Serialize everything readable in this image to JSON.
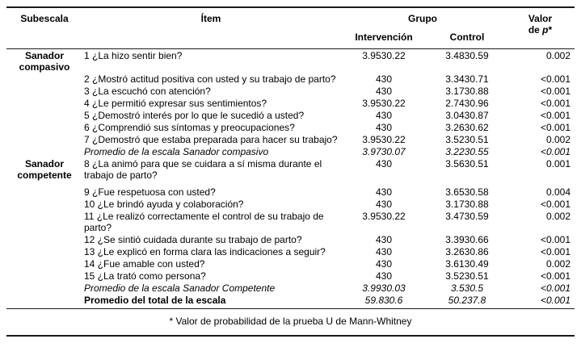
{
  "table": {
    "headers": {
      "subescala": "Subescala",
      "item": "Ítem",
      "grupo": "Grupo",
      "valor_line1": "Valor",
      "valor_line2_prefix": "de ",
      "p_symbol": "p",
      "p_star": "*",
      "intervencion": "Intervención",
      "control": "Control"
    },
    "rows": [
      {
        "subescala": "Sanador compasivo",
        "item": "1 ¿La hizo sentir bien?",
        "intervencion": "3.9530.22",
        "control": "3.4830.59",
        "p": "0.002"
      },
      {
        "item": "2 ¿Mostró actitud positiva con usted y su trabajo de parto?",
        "intervencion": "430",
        "control": "3.3430.71",
        "p": "<0.001"
      },
      {
        "item": "3 ¿La escuchó con atención?",
        "intervencion": "430",
        "control": "3.1730.88",
        "p": "<0.001"
      },
      {
        "item": "4 ¿Le permitió expresar sus sentimientos?",
        "intervencion": "3.9530.22",
        "control": "2.7430.96",
        "p": "<0.001"
      },
      {
        "item": "5 ¿Demostró interés por lo que le sucedió a usted?",
        "intervencion": "430",
        "control": "3.0430.87",
        "p": "<0.001"
      },
      {
        "item": "6 ¿Comprendió sus síntomas y preocupaciones?",
        "intervencion": "430",
        "control": "3.2630.62",
        "p": "<0.001"
      },
      {
        "item": "7 ¿Demostró que estaba preparada para hacer su trabajo?",
        "intervencion": "3.9530.22",
        "control": "3.5230.51",
        "p": "0.002"
      },
      {
        "item": "Promedio de la escala Sanador compasivo",
        "intervencion": "3.9730.07",
        "control": "3.2230.55",
        "p": "<0.001",
        "style": "avg"
      },
      {
        "subescala": "Sanador competente",
        "item": "8 ¿La animó para que se cuidara a sí misma durante el trabajo de parto?",
        "intervencion": "430",
        "control": "3.5630.51",
        "p": "0.001"
      },
      {
        "item": "9 ¿Fue respetuosa con usted?",
        "intervencion": "430",
        "control": "3.6530.58",
        "p": "0.004",
        "gap": true
      },
      {
        "item": "10 ¿Le brindó ayuda y colaboración?",
        "intervencion": "430",
        "control": "3.1730.88",
        "p": "<0.001"
      },
      {
        "item": "11 ¿Le realizó correctamente el control de su trabajo de parto?",
        "intervencion": "3.9530.22",
        "control": "3.4730.59",
        "p": "0.002"
      },
      {
        "item": "12 ¿Se sintió cuidada durante su trabajo de parto?",
        "intervencion": "430",
        "control": "3.3930.66",
        "p": "<0.001"
      },
      {
        "item": "13 ¿Le explicó en forma clara las indicaciones a seguir?",
        "intervencion": "430",
        "control": "3.2630.86",
        "p": "<0.001"
      },
      {
        "item": "14 ¿Fue amable con usted?",
        "intervencion": "430",
        "control": "3.6130.49",
        "p": "0.002"
      },
      {
        "item": "15 ¿La trató como persona?",
        "intervencion": "430",
        "control": "3.5230.51",
        "p": "<0.001"
      },
      {
        "item": "Promedio de la escala Sanador Competente",
        "intervencion": "3.9930.03",
        "control": "3.530.5",
        "p": "<0.001",
        "style": "avg"
      },
      {
        "item": "Promedio del total de la escala",
        "intervencion": "59.830.6",
        "control": "50.237.8",
        "p": "<0.001",
        "style": "total"
      }
    ],
    "footnote": "* Valor de probabilidad de la prueba U de Mann-Whitney"
  }
}
